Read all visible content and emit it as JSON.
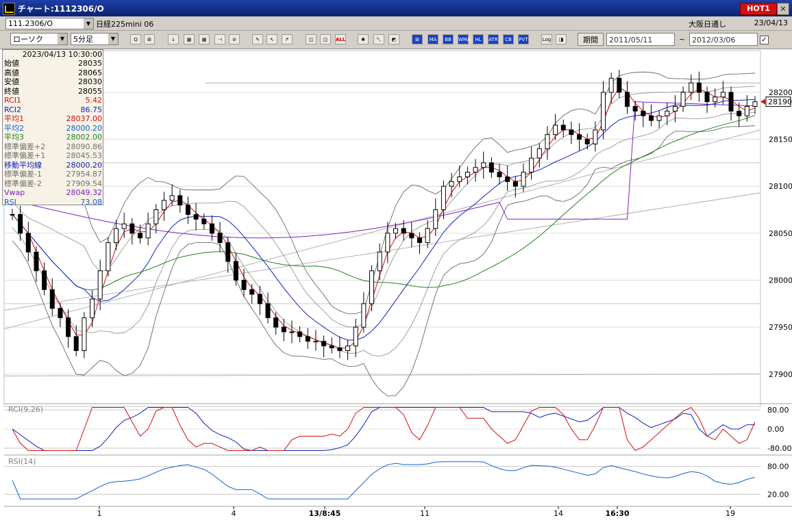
{
  "window": {
    "title": "チャート:1112306/O",
    "hot_label": "HOT1",
    "close_label": "×"
  },
  "header": {
    "code": "111.2306/O",
    "instrument": "日経225mini 06",
    "exchange": "大阪日通し",
    "date": "23/04/13"
  },
  "toolbar": {
    "chart_type": "ローソク",
    "interval": "5分足",
    "buttons": [
      "Q",
      "⊞",
      "↓",
      "▦",
      "▦",
      "⊣",
      "⊘",
      "✎",
      "↖",
      "↱",
      "◫",
      "◫",
      "ALL",
      "✱",
      "🔧",
      "◩",
      "⊞",
      "MA",
      "BB",
      "WMA",
      "HL",
      "ATR",
      "CB",
      "PVT",
      "Log",
      "◨"
    ],
    "period_label": "期間",
    "date_from": "2011/05/11",
    "date_to": "2012/03/06",
    "tilde": "~",
    "check": "✓"
  },
  "info_panel": {
    "datetime": "2023/04/13  10:30:00",
    "rows": [
      {
        "label": "始値",
        "value": "28035",
        "color": "#000000"
      },
      {
        "label": "高値",
        "value": "28065",
        "color": "#000000"
      },
      {
        "label": "安値",
        "value": "28030",
        "color": "#000000"
      },
      {
        "label": "終値",
        "value": "28055",
        "color": "#000000"
      },
      {
        "label": "RCI1",
        "value": "5.42",
        "color": "#d01010"
      },
      {
        "label": "RCI2",
        "value": "86.75",
        "color": "#1020c0"
      },
      {
        "label": "平均1",
        "value": "28037.00",
        "color": "#d01010"
      },
      {
        "label": "平均2",
        "value": "28000.20",
        "color": "#1060d0"
      },
      {
        "label": "平均3",
        "value": "28002.00",
        "color": "#208020"
      },
      {
        "label": "標準偏差+2",
        "value": "28090.86",
        "color": "#707070"
      },
      {
        "label": "標準偏差+1",
        "value": "28045.53",
        "color": "#707070"
      },
      {
        "label": "移動平均線",
        "value": "28000.20",
        "color": "#1020c0"
      },
      {
        "label": "標準偏差-1",
        "value": "27954.87",
        "color": "#707070"
      },
      {
        "label": "標準偏差-2",
        "value": "27909.54",
        "color": "#707070"
      },
      {
        "label": "Vwap",
        "value": "28049.32",
        "color": "#8020c0"
      },
      {
        "label": "RSI",
        "value": "73.08",
        "color": "#1060d0"
      }
    ]
  },
  "chart_data": [
    {
      "type": "candlestick",
      "price_axis_ticks": [
        27900,
        27950,
        28000,
        28050,
        28100,
        28150,
        28200
      ],
      "ylim": [
        27870,
        28240
      ],
      "current_price": "28190",
      "x_labels": [
        "1",
        "4",
        "13/8:45",
        "11",
        "14",
        "16:30",
        "19"
      ],
      "close_series": [
        28070,
        28050,
        28030,
        28010,
        27990,
        27970,
        27960,
        27940,
        27925,
        27960,
        27980,
        28010,
        28040,
        28055,
        28060,
        28050,
        28045,
        28060,
        28075,
        28085,
        28090,
        28080,
        28070,
        28065,
        28060,
        28050,
        28040,
        28020,
        28000,
        27990,
        27985,
        27975,
        27960,
        27950,
        27945,
        27945,
        27940,
        27935,
        27935,
        27930,
        27928,
        27925,
        27930,
        27950,
        27975,
        28010,
        28030,
        28050,
        28055,
        28050,
        28045,
        28040,
        28055,
        28075,
        28100,
        28105,
        28110,
        28115,
        28120,
        28125,
        28115,
        28110,
        28105,
        28100,
        28115,
        28130,
        28140,
        28155,
        28165,
        28160,
        28155,
        28150,
        28145,
        28160,
        28200,
        28215,
        28200,
        28185,
        28180,
        28175,
        28170,
        28175,
        28180,
        28185,
        28200,
        28210,
        28200,
        28190,
        28195,
        28200,
        28180,
        28175,
        28185,
        28190
      ]
    },
    {
      "type": "line",
      "title": "RCI(9,26)",
      "ylabels": [
        "80.00",
        "0.00",
        "-80.00"
      ],
      "ylim": [
        -100,
        100
      ]
    },
    {
      "type": "line",
      "title": "RSI(14)",
      "ylabels": [
        "80.00",
        "20.00"
      ],
      "ylim": [
        0,
        100
      ]
    }
  ]
}
